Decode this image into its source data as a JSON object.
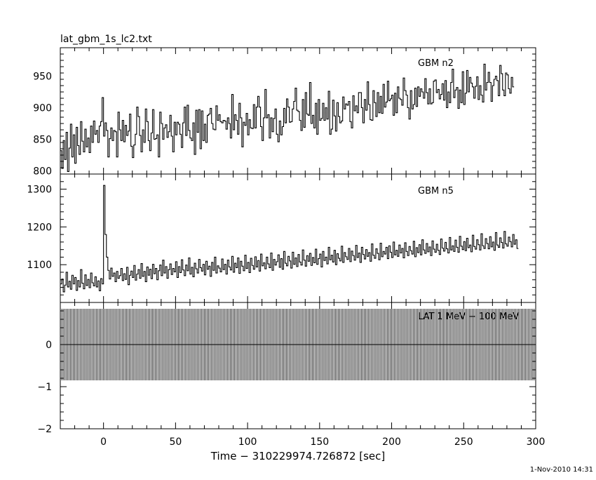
{
  "file_title": "lat_gbm_1s_lc2.txt",
  "timestamp": "1-Nov-2010 14:31",
  "xlabel": "Time − 310229974.726872 [sec]",
  "chart_data": [
    {
      "type": "line",
      "label": "GBM n2",
      "xlim": [
        -30,
        300
      ],
      "ylim": [
        795,
        995
      ],
      "xticks": [
        0,
        50,
        100,
        150,
        200,
        250,
        300
      ],
      "yticks": [
        800,
        850,
        900,
        950
      ],
      "series": [
        {
          "x_start": -30,
          "x_step": 1,
          "values": [
            832,
            804,
            848,
            818,
            861,
            799,
            836,
            874,
            822,
            857,
            812,
            869,
            840,
            826,
            878,
            847,
            830,
            866,
            838,
            852,
            829,
            871,
            845,
            879,
            858,
            864,
            845,
            871,
            878,
            916,
            855,
            876,
            864,
            822,
            851,
            868,
            848,
            864,
            862,
            822,
            893,
            865,
            848,
            880,
            846,
            872,
            856,
            863,
            890,
            839,
            821,
            841,
            858,
            901,
            886,
            856,
            830,
            865,
            845,
            898,
            878,
            848,
            832,
            860,
            897,
            850,
            851,
            857,
            822,
            893,
            875,
            850,
            868,
            873,
            853,
            862,
            888,
            855,
            830,
            877,
            857,
            877,
            874,
            858,
            837,
            876,
            901,
            856,
            904,
            864,
            852,
            848,
            876,
            826,
            896,
            861,
            897,
            835,
            895,
            848,
            874,
            845,
            888,
            890,
            899,
            875,
            866,
            865,
            903,
            880,
            889,
            878,
            876,
            880,
            879,
            866,
            884,
            875,
            852,
            921,
            865,
            889,
            880,
            858,
            907,
            884,
            838,
            877,
            872,
            891,
            857,
            881,
            868,
            867,
            905,
            868,
            901,
            918,
            901,
            870,
            848,
            884,
            929,
            884,
            889,
            852,
            884,
            862,
            883,
            898,
            858,
            846,
            879,
            857,
            870,
            899,
            876,
            914,
            901,
            877,
            878,
            898,
            910,
            931,
            896,
            894,
            880,
            864,
            913,
            869,
            924,
            890,
            888,
            940,
            875,
            888,
            868,
            907,
            858,
            913,
            880,
            883,
            907,
            880,
            900,
            882,
            926,
            858,
            866,
            912,
            887,
            863,
            908,
            886,
            876,
            879,
            917,
            898,
            906,
            904,
            910,
            878,
            868,
            919,
            895,
            903,
            892,
            924,
            924,
            900,
            876,
            913,
            896,
            941,
            905,
            881,
            880,
            927,
            908,
            886,
            924,
            892,
            918,
            891,
            937,
            901,
            909,
            942,
            911,
            914,
            920,
            888,
            923,
            892,
            933,
            915,
            913,
            904,
            947,
            927,
            920,
            900,
            882,
            927,
            898,
            905,
            931,
            902,
            933,
            918,
            930,
            925,
            915,
            946,
            924,
            906,
            930,
            906,
            908,
            942,
            944,
            924,
            929,
            914,
            921,
            938,
            912,
            943,
            900,
            925,
            908,
            940,
            961,
            916,
            928,
            932,
            899,
            928,
            908,
            957,
            905,
            923,
            959,
            925,
            948,
            939,
            933,
            915,
            934,
            949,
            913,
            935,
            920,
            909,
            969,
            928,
            940,
            956,
            940,
            910,
            935,
            945,
            950,
            943,
            919,
            967,
            954,
            928,
            919,
            955,
            952,
            930,
            923,
            948,
            933
          ]
        }
      ]
    },
    {
      "type": "line",
      "label": "GBM n5",
      "xlim": [
        -30,
        300
      ],
      "ylim": [
        1000,
        1340
      ],
      "xticks": [
        0,
        50,
        100,
        150,
        200,
        250,
        300
      ],
      "yticks": [
        1100,
        1200,
        1300
      ],
      "series": [
        {
          "x_start": -30,
          "x_step": 1,
          "values": [
            1049,
            1062,
            1028,
            1046,
            1080,
            1041,
            1056,
            1035,
            1072,
            1049,
            1066,
            1032,
            1058,
            1041,
            1087,
            1051,
            1036,
            1073,
            1045,
            1061,
            1039,
            1078,
            1052,
            1044,
            1068,
            1041,
            1057,
            1031,
            1063,
            1049,
            1310,
            1180,
            1120,
            1085,
            1062,
            1091,
            1069,
            1078,
            1055,
            1082,
            1064,
            1071,
            1090,
            1058,
            1076,
            1061,
            1093,
            1047,
            1072,
            1083,
            1066,
            1098,
            1059,
            1075,
            1087,
            1064,
            1103,
            1069,
            1082,
            1055,
            1094,
            1072,
            1088,
            1063,
            1101,
            1076,
            1090,
            1060,
            1084,
            1099,
            1071,
            1112,
            1078,
            1095,
            1064,
            1087,
            1102,
            1074,
            1090,
            1081,
            1108,
            1066,
            1095,
            1079,
            1113,
            1086,
            1071,
            1099,
            1084,
            1118,
            1075,
            1093,
            1068,
            1104,
            1089,
            1078,
            1114,
            1092,
            1083,
            1101,
            1073,
            1109,
            1088,
            1096,
            1069,
            1106,
            1085,
            1120,
            1078,
            1097,
            1091,
            1081,
            1115,
            1087,
            1101,
            1075,
            1112,
            1094,
            1086,
            1122,
            1080,
            1104,
            1092,
            1118,
            1077,
            1109,
            1096,
            1084,
            1125,
            1090,
            1106,
            1079,
            1117,
            1098,
            1088,
            1121,
            1094,
            1111,
            1083,
            1128,
            1097,
            1105,
            1089,
            1120,
            1102,
            1092,
            1131,
            1085,
            1114,
            1099,
            1108,
            1126,
            1093,
            1116,
            1088,
            1135,
            1104,
            1097,
            1122,
            1110,
            1091,
            1133,
            1101,
            1118,
            1095,
            1127,
            1107,
            1099,
            1139,
            1112,
            1096,
            1124,
            1109,
            1130,
            1098,
            1119,
            1105,
            1141,
            1101,
            1116,
            1128,
            1094,
            1135,
            1111,
            1120,
            1102,
            1146,
            1113,
            1125,
            1107,
            1138,
            1100,
            1129,
            1117,
            1110,
            1149,
            1106,
            1132,
            1121,
            1114,
            1143,
            1108,
            1136,
            1124,
            1112,
            1151,
            1119,
            1131,
            1106,
            1146,
            1127,
            1115,
            1140,
            1122,
            1132,
            1109,
            1155,
            1125,
            1117,
            1142,
            1130,
            1113,
            1157,
            1121,
            1135,
            1128,
            1146,
            1116,
            1150,
            1133,
            1119,
            1160,
            1126,
            1138,
            1122,
            1152,
            1131,
            1143,
            1118,
            1158,
            1135,
            1124,
            1148,
            1137,
            1128,
            1162,
            1121,
            1145,
            1132,
            1153,
            1126,
            1166,
            1139,
            1130,
            1156,
            1134,
            1147,
            1124,
            1163,
            1141,
            1133,
            1154,
            1138,
            1127,
            1168,
            1144,
            1136,
            1159,
            1142,
            1131,
            1172,
            1139,
            1150,
            1135,
            1165,
            1146,
            1133,
            1175,
            1149,
            1140,
            1161,
            1137,
            1170,
            1145,
            1152,
            1134,
            1178,
            1148,
            1141,
            1166,
            1153,
            1139,
            1182,
            1150,
            1143,
            1169,
            1156,
            1142,
            1174,
            1147,
            1160,
            1138,
            1185,
            1152,
            1146,
            1171,
            1159,
            1144,
            1188,
            1155,
            1149,
            1173,
            1161,
            1147,
            1180,
            1154,
            1166,
            1143
          ]
        }
      ]
    },
    {
      "type": "bar",
      "label": "LAT 1 MeV − 100 MeV",
      "xlim": [
        -30,
        300
      ],
      "ylim": [
        -2,
        1
      ],
      "xticks": [
        0,
        50,
        100,
        150,
        200,
        250,
        300
      ],
      "yticks": [
        -2,
        -1,
        0
      ],
      "ytick_labels": [
        "−2",
        "−1",
        "0"
      ],
      "series": [
        {
          "x_start": -30,
          "x_step": 1,
          "values": [
            0
          ],
          "error_bar_half_width": 0.85
        }
      ]
    }
  ]
}
